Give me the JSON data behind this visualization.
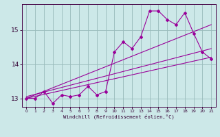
{
  "xlabel": "Windchill (Refroidissement éolien,°C)",
  "bg_color": "#cce8e8",
  "line_color": "#990099",
  "grid_color": "#99bbbb",
  "xlim": [
    -0.5,
    21.5
  ],
  "ylim": [
    12.75,
    15.75
  ],
  "yticks": [
    13,
    14,
    15
  ],
  "xticks": [
    0,
    1,
    2,
    3,
    4,
    5,
    6,
    7,
    8,
    9,
    10,
    11,
    12,
    13,
    14,
    15,
    16,
    17,
    18,
    19,
    20,
    21
  ],
  "data_x": [
    0,
    1,
    2,
    3,
    4,
    5,
    6,
    7,
    8,
    9,
    10,
    11,
    12,
    13,
    14,
    15,
    16,
    17,
    18,
    19,
    20,
    21
  ],
  "data_y": [
    13.0,
    13.0,
    13.2,
    12.85,
    13.1,
    13.05,
    13.1,
    13.35,
    13.1,
    13.2,
    14.35,
    14.65,
    14.45,
    14.8,
    15.55,
    15.55,
    15.3,
    15.15,
    15.5,
    14.9,
    14.35,
    14.15
  ],
  "line1_x": [
    0,
    21
  ],
  "line1_y": [
    13.0,
    15.15
  ],
  "line2_x": [
    0,
    21
  ],
  "line2_y": [
    13.0,
    14.2
  ],
  "line3_x": [
    0,
    21
  ],
  "line3_y": [
    13.05,
    14.45
  ]
}
